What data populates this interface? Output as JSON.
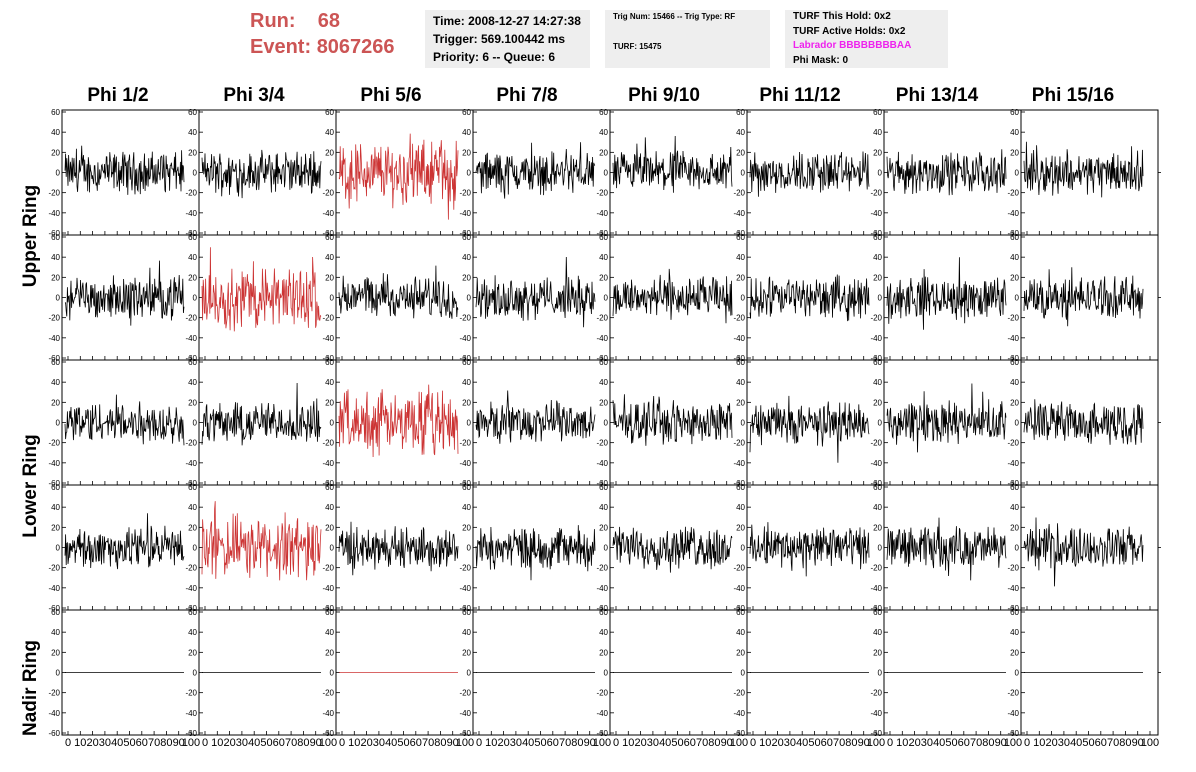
{
  "header": {
    "run_label": "Run:",
    "run_value": "68",
    "event_label": "Event:",
    "event_value": "8067266",
    "time": "Time: 2008-12-27 14:27:38",
    "trigger": "Trigger: 569.100442 ms",
    "priority": "Priority: 6 -- Queue: 6",
    "trig_num": "Trig Num: 15466 -- Trig Type: RF",
    "turf": "TURF: 15475",
    "turf_this_hold": "TURF This Hold: 0x2",
    "turf_active_holds": "TURF Active Holds: 0x2",
    "labrador": "Labrador BBBBBBBBAA",
    "phi_mask": "Phi Mask: 0"
  },
  "columns": [
    "Phi 1/2",
    "Phi 3/4",
    "Phi 5/6",
    "Phi 7/8",
    "Phi 9/10",
    "Phi 11/12",
    "Phi 13/14",
    "Phi 15/16"
  ],
  "rows": [
    "Upper Ring",
    "Upper Ring",
    "Lower Ring",
    "Lower Ring",
    "Nadir Ring"
  ],
  "row_labels": {
    "upper": "Upper Ring",
    "lower": "Lower Ring",
    "nadir": "Nadir Ring"
  },
  "axes": {
    "y_ticks": [
      "60",
      "40",
      "20",
      "0",
      "-20",
      "-40",
      "-60"
    ],
    "x_ticks": [
      "0",
      "10",
      "20",
      "30",
      "40",
      "50",
      "60",
      "70",
      "80",
      "90",
      "100"
    ]
  },
  "highlighted_panels": [
    [
      0,
      2
    ],
    [
      1,
      1
    ],
    [
      2,
      2
    ],
    [
      3,
      1
    ],
    [
      4,
      2
    ]
  ],
  "colors": {
    "trace": "#000000",
    "highlight": "#cc3333",
    "run_text": "#cc5555",
    "labrador": "#ee22ee",
    "info_bg": "#eeeeee"
  }
}
